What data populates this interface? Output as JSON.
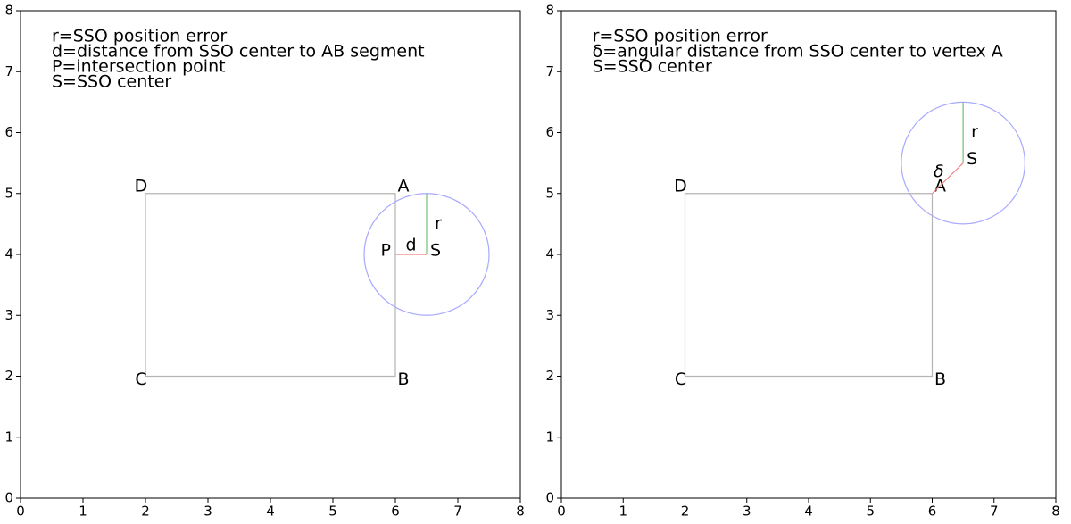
{
  "chart_data": [
    {
      "type": "geometry",
      "xlim": [
        0,
        8
      ],
      "ylim": [
        0,
        8
      ],
      "xticks": [
        0,
        1,
        2,
        3,
        4,
        5,
        6,
        7,
        8
      ],
      "yticks": [
        0,
        1,
        2,
        3,
        4,
        5,
        6,
        7,
        8
      ],
      "notes": [
        "r=SSO position error",
        "d=distance from SSO center to AB segment",
        "P=intersection point",
        "S=SSO center"
      ],
      "polygon": {
        "color": "#b4b4b4",
        "x": [
          6,
          6,
          2,
          2
        ],
        "y": [
          5,
          2,
          2,
          5
        ],
        "labels": [
          "A",
          "B",
          "C",
          "D"
        ]
      },
      "circle": {
        "color": "#a8a8ff",
        "cx": 6.5,
        "cy": 4,
        "r": 1
      },
      "segments": [
        {
          "color": "#f08080",
          "x": [
            6,
            6.5
          ],
          "y": [
            4,
            4
          ],
          "label": "d"
        },
        {
          "color": "#70c070",
          "x": [
            6.5,
            6.5
          ],
          "y": [
            4,
            5
          ],
          "label": "r"
        }
      ],
      "points": [
        {
          "label": "P",
          "x": 6,
          "y": 4
        },
        {
          "label": "S",
          "x": 6.5,
          "y": 4
        }
      ]
    },
    {
      "type": "geometry",
      "xlim": [
        0,
        8
      ],
      "ylim": [
        0,
        8
      ],
      "xticks": [
        0,
        1,
        2,
        3,
        4,
        5,
        6,
        7,
        8
      ],
      "yticks": [
        0,
        1,
        2,
        3,
        4,
        5,
        6,
        7,
        8
      ],
      "notes": [
        "r=SSO position error",
        "δ=angular distance from SSO center to vertex A",
        "S=SSO center"
      ],
      "polygon": {
        "color": "#b4b4b4",
        "x": [
          6,
          6,
          2,
          2
        ],
        "y": [
          5,
          2,
          2,
          5
        ],
        "labels": [
          "A",
          "B",
          "C",
          "D"
        ]
      },
      "circle": {
        "color": "#a8a8ff",
        "cx": 6.5,
        "cy": 5.5,
        "r": 1
      },
      "segments": [
        {
          "color": "#f08080",
          "x": [
            6,
            6.5
          ],
          "y": [
            5,
            5.5
          ],
          "label": "δ"
        },
        {
          "color": "#70c070",
          "x": [
            6.5,
            6.5
          ],
          "y": [
            5.5,
            6.5
          ],
          "label": "r"
        }
      ],
      "points": [
        {
          "label": "S",
          "x": 6.5,
          "y": 5.5
        }
      ]
    }
  ]
}
